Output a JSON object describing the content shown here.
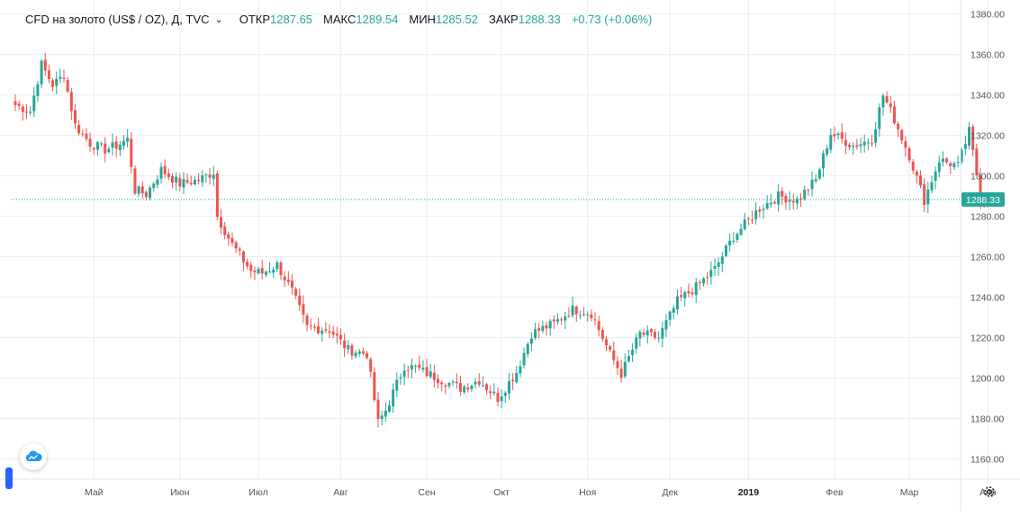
{
  "legend": {
    "symbol": "CFD на золото (US$ / OZ), Д, TVC",
    "open_label": "ОТКР",
    "open": "1287.65",
    "high_label": "МАКС",
    "high": "1289.54",
    "low_label": "МИН",
    "low": "1285.52",
    "close_label": "ЗАКР",
    "close": "1288.33",
    "change": "+0.73 (+0.06%)"
  },
  "colors": {
    "up": "#26a69a",
    "down": "#ef5350",
    "grid": "#e8edf3",
    "axis_text": "#50535e",
    "price_tag": "#26a69a"
  },
  "icons": {
    "logo": "tradingview-cloud-icon",
    "settings": "gear-icon",
    "menu": "chevron-down-icon"
  },
  "chart_data": {
    "type": "candlestick",
    "title": "CFD на золото (US$ / OZ), Д, TVC",
    "ylim": [
      1150,
      1387
    ],
    "y_ticks": [
      "1160.00",
      "1180.00",
      "1200.00",
      "1220.00",
      "1240.00",
      "1260.00",
      "1280.00",
      "1300.00",
      "1320.00",
      "1340.00",
      "1360.00",
      "1380.00"
    ],
    "x_labels": [
      "Май",
      "Июн",
      "Июл",
      "Авг",
      "Сен",
      "Окт",
      "Ноя",
      "Дек",
      "2019",
      "Фев",
      "Мар",
      "Апр"
    ],
    "last_price": "1288.33",
    "anchors": [
      [
        "2018-04-02",
        1335
      ],
      [
        "2018-04-06",
        1332
      ],
      [
        "2018-04-11",
        1355
      ],
      [
        "2018-04-16",
        1345
      ],
      [
        "2018-04-19",
        1350
      ],
      [
        "2018-04-24",
        1325
      ],
      [
        "2018-04-30",
        1316
      ],
      [
        "2018-05-04",
        1313
      ],
      [
        "2018-05-09",
        1315
      ],
      [
        "2018-05-14",
        1318
      ],
      [
        "2018-05-16",
        1293
      ],
      [
        "2018-05-21",
        1291
      ],
      [
        "2018-05-25",
        1303
      ],
      [
        "2018-06-01",
        1296
      ],
      [
        "2018-06-08",
        1298
      ],
      [
        "2018-06-14",
        1302
      ],
      [
        "2018-06-15",
        1280
      ],
      [
        "2018-06-21",
        1266
      ],
      [
        "2018-06-28",
        1253
      ],
      [
        "2018-07-03",
        1252
      ],
      [
        "2018-07-09",
        1256
      ],
      [
        "2018-07-13",
        1243
      ],
      [
        "2018-07-19",
        1225
      ],
      [
        "2018-07-27",
        1224
      ],
      [
        "2018-08-03",
        1214
      ],
      [
        "2018-08-10",
        1212
      ],
      [
        "2018-08-15",
        1178
      ],
      [
        "2018-08-17",
        1184
      ],
      [
        "2018-08-24",
        1206
      ],
      [
        "2018-08-29",
        1205
      ],
      [
        "2018-09-07",
        1199
      ],
      [
        "2018-09-14",
        1195
      ],
      [
        "2018-09-21",
        1199
      ],
      [
        "2018-09-28",
        1190
      ],
      [
        "2018-10-05",
        1203
      ],
      [
        "2018-10-11",
        1222
      ],
      [
        "2018-10-19",
        1227
      ],
      [
        "2018-10-26",
        1234
      ],
      [
        "2018-11-02",
        1232
      ],
      [
        "2018-11-09",
        1212
      ],
      [
        "2018-11-14",
        1202
      ],
      [
        "2018-11-21",
        1222
      ],
      [
        "2018-11-28",
        1220
      ],
      [
        "2018-12-05",
        1238
      ],
      [
        "2018-12-12",
        1245
      ],
      [
        "2018-12-19",
        1254
      ],
      [
        "2018-12-26",
        1270
      ],
      [
        "2019-01-04",
        1284
      ],
      [
        "2019-01-11",
        1290
      ],
      [
        "2019-01-18",
        1288
      ],
      [
        "2019-01-25",
        1298
      ],
      [
        "2019-01-31",
        1321
      ],
      [
        "2019-02-08",
        1315
      ],
      [
        "2019-02-15",
        1318
      ],
      [
        "2019-02-20",
        1340
      ],
      [
        "2019-02-25",
        1328
      ],
      [
        "2019-03-01",
        1310
      ],
      [
        "2019-03-07",
        1288
      ],
      [
        "2019-03-13",
        1308
      ],
      [
        "2019-03-20",
        1305
      ],
      [
        "2019-03-25",
        1322
      ],
      [
        "2019-03-28",
        1290
      ],
      [
        "2019-04-01",
        1288
      ]
    ]
  }
}
